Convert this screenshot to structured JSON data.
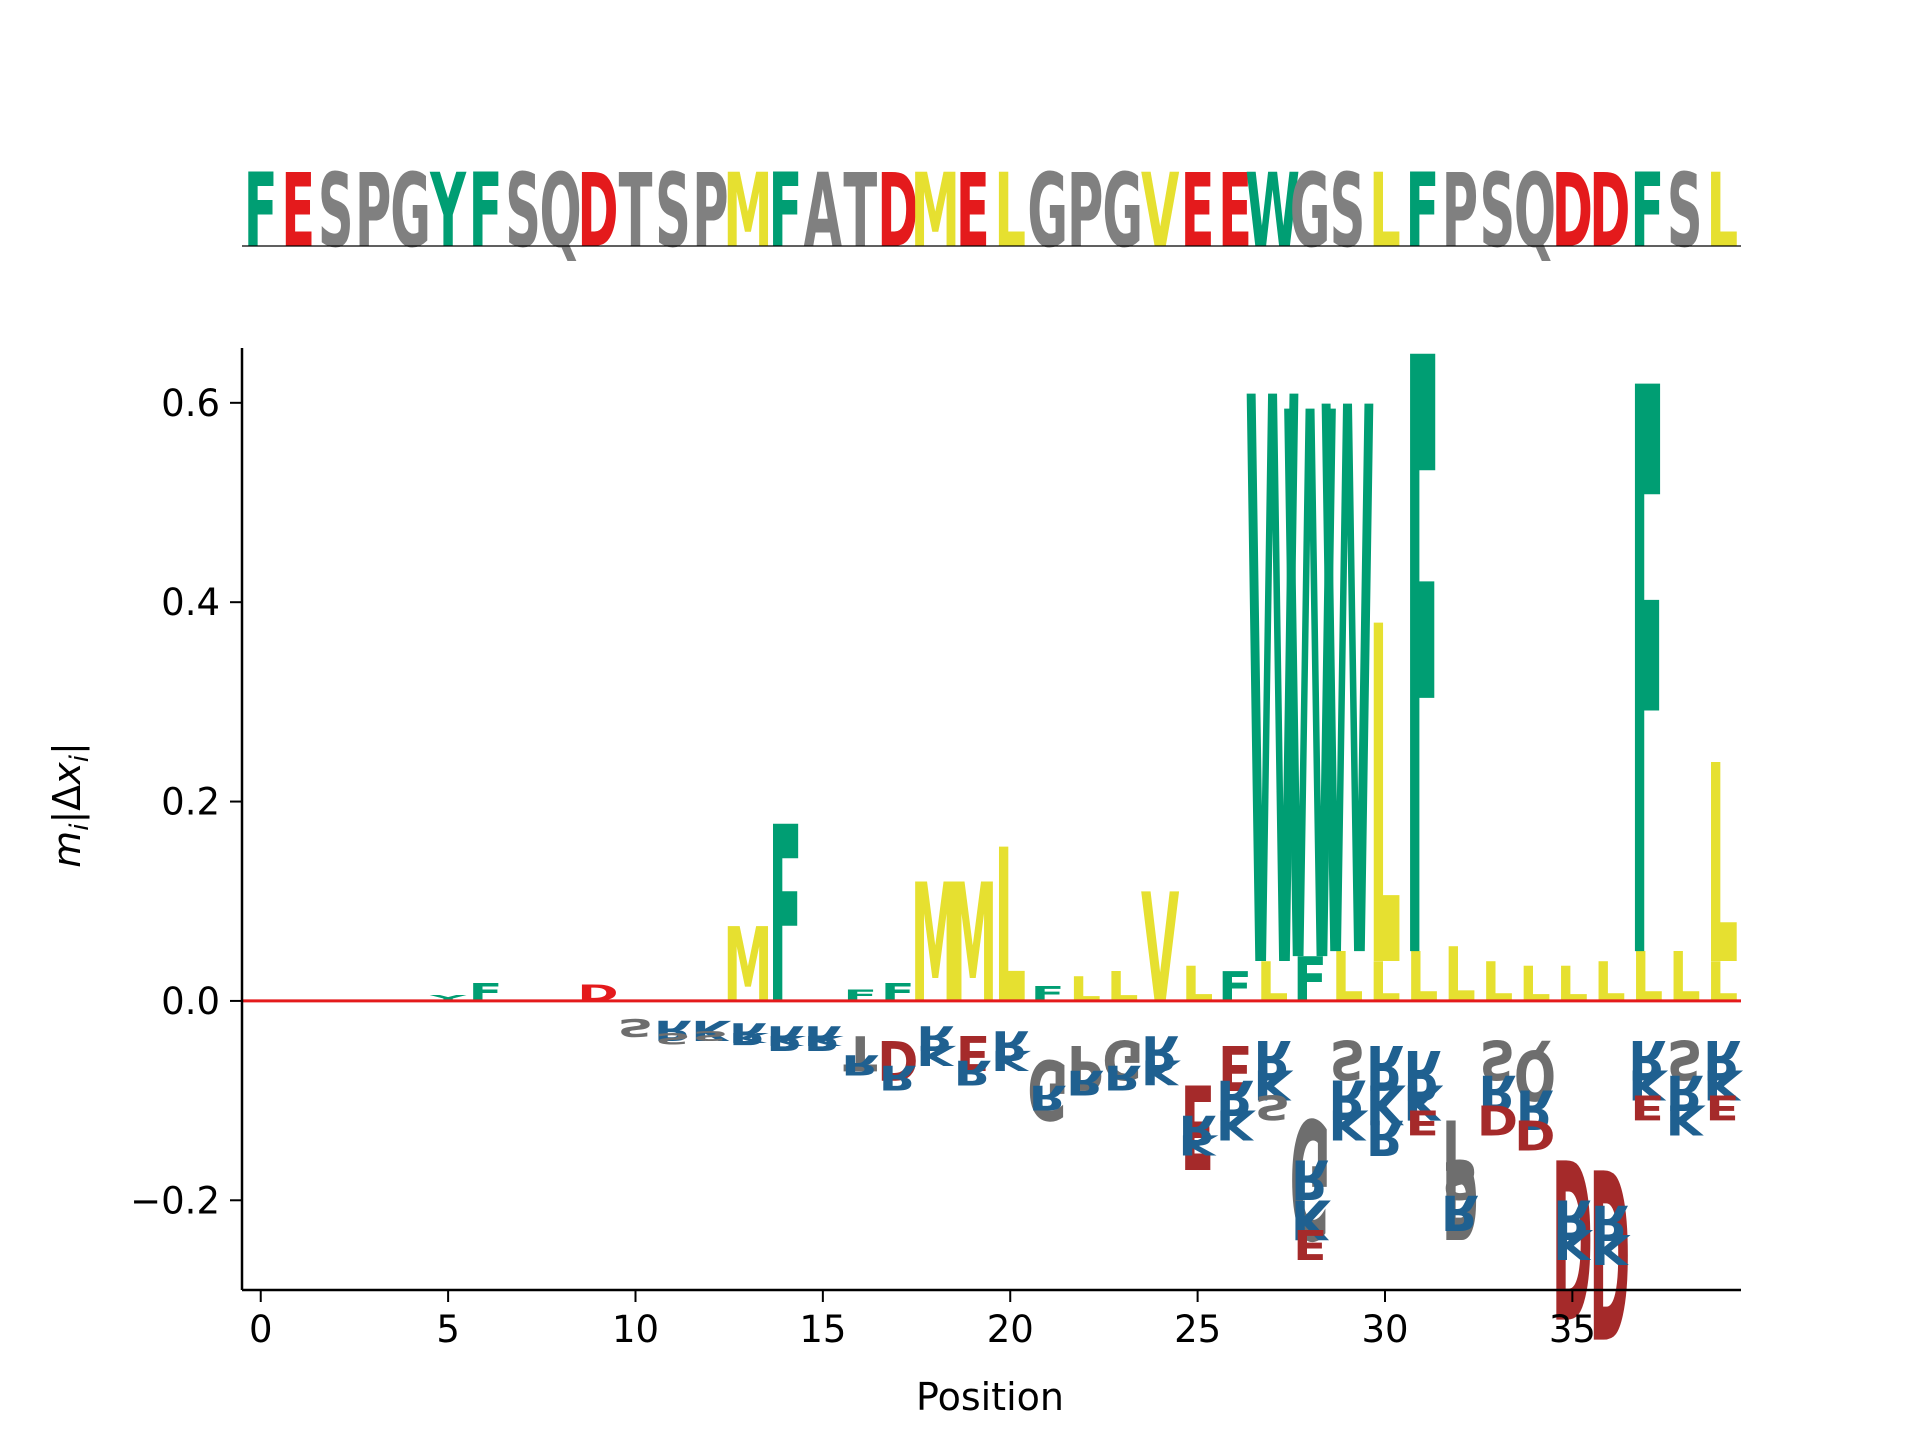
{
  "chart_data": {
    "type": "sequence-logo",
    "xlabel": "Position",
    "ylabel_parts": {
      "main": "m",
      "sub": "i",
      "open": "|Δ",
      "var": "x",
      "sub2": "i",
      "close": "|"
    },
    "xticks": [
      0,
      5,
      10,
      15,
      20,
      25,
      30,
      35
    ],
    "yticks": [
      {
        "value": -0.2,
        "label": "−0.2"
      },
      {
        "value": 0.0,
        "label": "0.0"
      },
      {
        "value": 0.2,
        "label": "0.2"
      },
      {
        "value": 0.4,
        "label": "0.4"
      },
      {
        "value": 0.6,
        "label": "0.6"
      }
    ],
    "xlim": [
      -0.5,
      39.5
    ],
    "ylim": [
      -0.29,
      0.655
    ],
    "baseline_color": "#e41a1c",
    "colors": {
      "hydrophobic_aromatic": "#009e73",
      "acidic": "#e41a1c",
      "polar_other": "#808080",
      "aliphatic": "#e6e030",
      "neg_acidic": "#a52a2a",
      "neg_basic": "#1f6090",
      "neg_other": "#6e6e6e"
    },
    "sequence": "FESPGYFSQDTSPMFATDMELGPGVEEWGSLFPSQDDFSL",
    "sequence_colors": {
      "F": "#009e73",
      "Y": "#009e73",
      "W": "#009e73",
      "D": "#e41a1c",
      "E": "#e41a1c",
      "M": "#e6e030",
      "L": "#e6e030",
      "V": "#e6e030",
      "S": "#808080",
      "P": "#808080",
      "G": "#808080",
      "Q": "#808080",
      "T": "#808080",
      "A": "#808080"
    },
    "positive_stacks": [
      {
        "x": 5,
        "letters": [
          {
            "l": "Y",
            "v": 0.006
          }
        ]
      },
      {
        "x": 6,
        "letters": [
          {
            "l": "F",
            "v": 0.018
          }
        ]
      },
      {
        "x": 9,
        "letters": [
          {
            "l": "D",
            "v": 0.016
          }
        ]
      },
      {
        "x": 13,
        "letters": [
          {
            "l": "M",
            "v": 0.075
          }
        ]
      },
      {
        "x": 14,
        "letters": [
          {
            "l": "F",
            "v": 0.178
          }
        ]
      },
      {
        "x": 16,
        "letters": [
          {
            "l": "F",
            "v": 0.012
          }
        ]
      },
      {
        "x": 17,
        "letters": [
          {
            "l": "F",
            "v": 0.018
          }
        ]
      },
      {
        "x": 18,
        "letters": [
          {
            "l": "M",
            "v": 0.12
          }
        ]
      },
      {
        "x": 19,
        "letters": [
          {
            "l": "M",
            "v": 0.12
          }
        ]
      },
      {
        "x": 20,
        "letters": [
          {
            "l": "L",
            "v": 0.155
          }
        ]
      },
      {
        "x": 21,
        "letters": [
          {
            "l": "F",
            "v": 0.015
          }
        ]
      },
      {
        "x": 22,
        "letters": [
          {
            "l": "L",
            "v": 0.025
          }
        ]
      },
      {
        "x": 23,
        "letters": [
          {
            "l": "L",
            "v": 0.03
          }
        ]
      },
      {
        "x": 24,
        "letters": [
          {
            "l": "V",
            "v": 0.11
          }
        ]
      },
      {
        "x": 25,
        "letters": [
          {
            "l": "L",
            "v": 0.035
          }
        ]
      },
      {
        "x": 26,
        "letters": [
          {
            "l": "F",
            "v": 0.03
          }
        ]
      },
      {
        "x": 27,
        "letters": [
          {
            "l": "L",
            "v": 0.04
          },
          {
            "l": "W",
            "v": 0.57
          }
        ]
      },
      {
        "x": 28,
        "letters": [
          {
            "l": "F",
            "v": 0.045
          },
          {
            "l": "W",
            "v": 0.55
          }
        ]
      },
      {
        "x": 29,
        "letters": [
          {
            "l": "L",
            "v": 0.05
          },
          {
            "l": "W",
            "v": 0.55
          }
        ]
      },
      {
        "x": 30,
        "letters": [
          {
            "l": "L",
            "v": 0.04
          },
          {
            "l": "L",
            "v": 0.34
          }
        ]
      },
      {
        "x": 31,
        "letters": [
          {
            "l": "L",
            "v": 0.05
          },
          {
            "l": "F",
            "v": 0.6
          }
        ]
      },
      {
        "x": 32,
        "letters": [
          {
            "l": "L",
            "v": 0.055
          }
        ]
      },
      {
        "x": 33,
        "letters": [
          {
            "l": "L",
            "v": 0.04
          }
        ]
      },
      {
        "x": 34,
        "letters": [
          {
            "l": "L",
            "v": 0.035
          }
        ]
      },
      {
        "x": 35,
        "letters": [
          {
            "l": "L",
            "v": 0.035
          }
        ]
      },
      {
        "x": 36,
        "letters": [
          {
            "l": "L",
            "v": 0.04
          }
        ]
      },
      {
        "x": 37,
        "letters": [
          {
            "l": "L",
            "v": 0.05
          },
          {
            "l": "F",
            "v": 0.57
          }
        ]
      },
      {
        "x": 38,
        "letters": [
          {
            "l": "L",
            "v": 0.05
          }
        ]
      },
      {
        "x": 39,
        "letters": [
          {
            "l": "L",
            "v": 0.04
          },
          {
            "l": "L",
            "v": 0.2
          }
        ]
      }
    ],
    "negative_stacks": [
      {
        "x": 10,
        "letters": [
          {
            "l": "S",
            "v": 0.018
          }
        ]
      },
      {
        "x": 11,
        "letters": [
          {
            "l": "R",
            "v": 0.02
          },
          {
            "l": "S",
            "v": 0.012
          }
        ]
      },
      {
        "x": 12,
        "letters": [
          {
            "l": "K",
            "v": 0.02
          },
          {
            "l": "S",
            "v": 0.01
          }
        ]
      },
      {
        "x": 13,
        "letters": [
          {
            "l": "R",
            "v": 0.022
          },
          {
            "l": "K",
            "v": 0.01
          }
        ]
      },
      {
        "x": 14,
        "letters": [
          {
            "l": "R",
            "v": 0.025
          },
          {
            "l": "K",
            "v": 0.01
          }
        ]
      },
      {
        "x": 15,
        "letters": [
          {
            "l": "R",
            "v": 0.025
          },
          {
            "l": "K",
            "v": 0.01
          }
        ]
      },
      {
        "x": 16,
        "letters": [
          {
            "l": "T",
            "v": 0.035
          },
          {
            "l": "R",
            "v": 0.02
          }
        ]
      },
      {
        "x": 17,
        "letters": [
          {
            "l": "D",
            "v": 0.04
          },
          {
            "l": "R",
            "v": 0.025
          }
        ]
      },
      {
        "x": 18,
        "letters": [
          {
            "l": "R",
            "v": 0.025
          },
          {
            "l": "K",
            "v": 0.02
          }
        ]
      },
      {
        "x": 19,
        "letters": [
          {
            "l": "E",
            "v": 0.035
          },
          {
            "l": "R",
            "v": 0.025
          }
        ]
      },
      {
        "x": 20,
        "letters": [
          {
            "l": "R",
            "v": 0.03
          },
          {
            "l": "K",
            "v": 0.02
          }
        ]
      },
      {
        "x": 21,
        "letters": [
          {
            "l": "G",
            "v": 0.06
          },
          {
            "l": "R",
            "v": 0.025
          }
        ]
      },
      {
        "x": 22,
        "letters": [
          {
            "l": "P",
            "v": 0.045
          },
          {
            "l": "R",
            "v": 0.025
          }
        ]
      },
      {
        "x": 23,
        "letters": [
          {
            "l": "G",
            "v": 0.04
          },
          {
            "l": "R",
            "v": 0.025
          }
        ]
      },
      {
        "x": 24,
        "letters": [
          {
            "l": "R",
            "v": 0.035
          },
          {
            "l": "K",
            "v": 0.025
          }
        ]
      },
      {
        "x": 25,
        "letters": [
          {
            "l": "E",
            "v": 0.085
          },
          {
            "l": "R",
            "v": 0.03
          },
          {
            "l": "K",
            "v": 0.02
          }
        ]
      },
      {
        "x": 26,
        "letters": [
          {
            "l": "E",
            "v": 0.045
          },
          {
            "l": "R",
            "v": 0.035
          },
          {
            "l": "K",
            "v": 0.03
          }
        ]
      },
      {
        "x": 27,
        "letters": [
          {
            "l": "R",
            "v": 0.04
          },
          {
            "l": "K",
            "v": 0.03
          },
          {
            "l": "S",
            "v": 0.025
          }
        ]
      },
      {
        "x": 28,
        "letters": [
          {
            "l": "G",
            "v": 0.12
          },
          {
            "l": "R",
            "v": 0.04
          },
          {
            "l": "K",
            "v": 0.04
          },
          {
            "l": "E",
            "v": 0.03
          }
        ]
      },
      {
        "x": 29,
        "letters": [
          {
            "l": "S",
            "v": 0.04
          },
          {
            "l": "R",
            "v": 0.04
          },
          {
            "l": "K",
            "v": 0.03
          }
        ]
      },
      {
        "x": 30,
        "letters": [
          {
            "l": "R",
            "v": 0.045
          },
          {
            "l": "K",
            "v": 0.04
          },
          {
            "l": "R",
            "v": 0.035
          }
        ]
      },
      {
        "x": 31,
        "letters": [
          {
            "l": "R",
            "v": 0.05
          },
          {
            "l": "K",
            "v": 0.035
          },
          {
            "l": "E",
            "v": 0.025
          }
        ]
      },
      {
        "x": 32,
        "letters": [
          {
            "l": "P",
            "v": 0.12
          },
          {
            "l": "S",
            "v": 0.04
          },
          {
            "l": "R",
            "v": 0.035
          }
        ]
      },
      {
        "x": 33,
        "letters": [
          {
            "l": "S",
            "v": 0.04
          },
          {
            "l": "R",
            "v": 0.035
          },
          {
            "l": "D",
            "v": 0.03
          }
        ]
      },
      {
        "x": 34,
        "letters": [
          {
            "l": "Q",
            "v": 0.05
          },
          {
            "l": "R",
            "v": 0.04
          },
          {
            "l": "D",
            "v": 0.03
          }
        ]
      },
      {
        "x": 35,
        "letters": [
          {
            "l": "D",
            "v": 0.16
          },
          {
            "l": "R",
            "v": 0.04
          },
          {
            "l": "K",
            "v": 0.03
          }
        ]
      },
      {
        "x": 36,
        "letters": [
          {
            "l": "D",
            "v": 0.17
          },
          {
            "l": "R",
            "v": 0.035
          },
          {
            "l": "K",
            "v": 0.03
          }
        ]
      },
      {
        "x": 37,
        "letters": [
          {
            "l": "R",
            "v": 0.04
          },
          {
            "l": "K",
            "v": 0.03
          },
          {
            "l": "E",
            "v": 0.025
          }
        ]
      },
      {
        "x": 38,
        "letters": [
          {
            "l": "S",
            "v": 0.04
          },
          {
            "l": "R",
            "v": 0.035
          },
          {
            "l": "K",
            "v": 0.03
          }
        ]
      },
      {
        "x": 39,
        "letters": [
          {
            "l": "R",
            "v": 0.04
          },
          {
            "l": "K",
            "v": 0.03
          },
          {
            "l": "E",
            "v": 0.025
          }
        ]
      }
    ]
  }
}
